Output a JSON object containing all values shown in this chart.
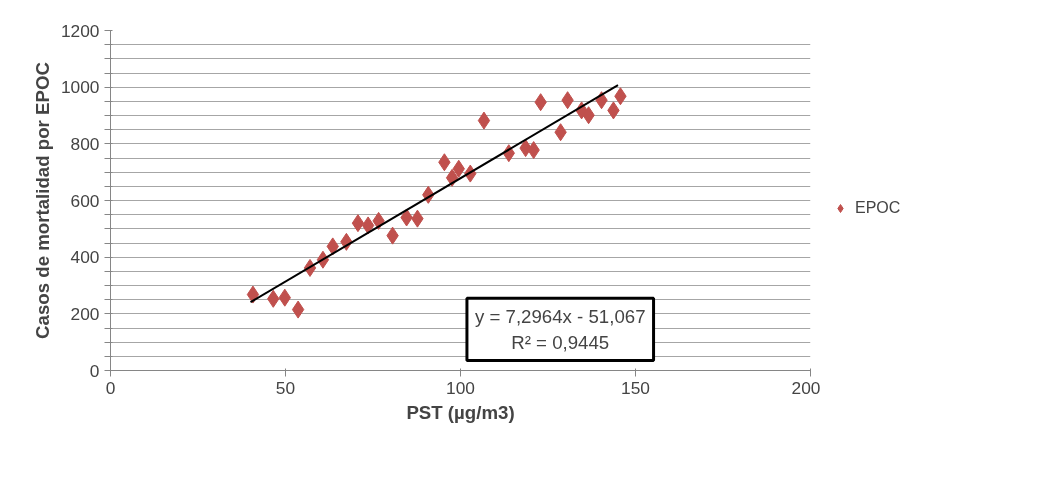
{
  "chart_data": {
    "type": "scatter",
    "xlabel": "PST (µg/m3)",
    "ylabel": "Casos de mortalidad por EPOC",
    "xlim": [
      0,
      200
    ],
    "xticks": [
      0,
      50,
      100,
      150,
      200
    ],
    "ylim": [
      0,
      1200
    ],
    "yticks": [
      0,
      {
        "value": 50,
        "label": null
      },
      {
        "value": 100,
        "label": null
      },
      {
        "value": 150,
        "label": null
      },
      200,
      {
        "value": 250,
        "label": null
      },
      {
        "value": 300,
        "label": null
      },
      {
        "value": 350,
        "label": null
      },
      400,
      {
        "value": 450,
        "label": null
      },
      {
        "value": 500,
        "label": null
      },
      {
        "value": 550,
        "label": null
      },
      600,
      {
        "value": 650,
        "label": null
      },
      {
        "value": 700,
        "label": null
      },
      {
        "value": 750,
        "label": null
      },
      800,
      {
        "value": 850,
        "label": null
      },
      {
        "value": 900,
        "label": null
      },
      {
        "value": 950,
        "label": null
      },
      1000,
      {
        "value": 1050,
        "label": null
      },
      {
        "value": 1100,
        "label": null
      },
      {
        "value": 1150,
        "label": null
      },
      1200
    ],
    "grid": "y",
    "legend": "right",
    "marker": "diamond",
    "annotations": [
      "y = 7,2964x - 51,067",
      "R² = 0,9445"
    ],
    "series": [
      {
        "name": "EPOC",
        "color": "#c0504d",
        "x": [
          40.7,
          46.5,
          49.8,
          53.6,
          57,
          60.7,
          63.5,
          67.4,
          70.7,
          73.6,
          76.6,
          80.6,
          84.6,
          87.7,
          90.8,
          95.4,
          97.6,
          99.5,
          102.8,
          106.7,
          113.8,
          118.6,
          120.9,
          122.9,
          128.6,
          130.6,
          134.6,
          136.6,
          140.3,
          143.7,
          145.7
        ],
        "values": [
          268,
          253,
          257,
          215,
          362,
          391,
          438,
          454,
          520,
          512,
          528,
          476,
          540,
          536,
          620,
          735,
          680,
          712,
          695,
          882,
          767,
          785,
          778,
          947,
          841,
          954,
          918,
          901,
          954,
          918,
          968
        ]
      },
      {
        "type": "line",
        "color": "#000000",
        "x": [
          40,
          145
        ],
        "values": [
          241,
          1007
        ],
        "marker": "none"
      }
    ]
  }
}
